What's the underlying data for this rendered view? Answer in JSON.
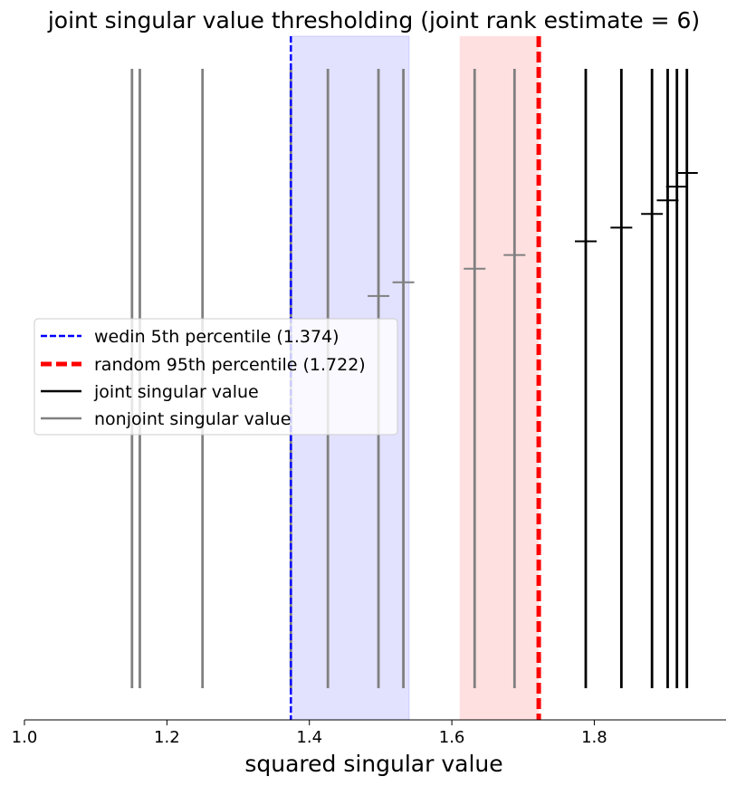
{
  "chart_data": {
    "type": "line",
    "title": "joint singular value thresholding (joint rank estimate = 6)",
    "xlabel": "squared singular value",
    "ylabel": "",
    "xlim": [
      1.0,
      1.985
    ],
    "xticks": [
      1.0,
      1.2,
      1.4,
      1.6,
      1.8
    ],
    "xtick_labels": [
      "1.0",
      "1.2",
      "1.4",
      "1.6",
      "1.8"
    ],
    "grid": false,
    "legend_position": "center-left",
    "colors": {
      "wedin_line": "#0000ff",
      "random_line": "#ff0000",
      "wedin_band": "#b3b3ff",
      "random_band": "#ffc2c2",
      "joint": "#000000",
      "nonjoint": "#808080"
    },
    "thresholds": {
      "wedin_5th_percentile": 1.374,
      "random_95th_percentile": 1.722,
      "wedin_band": [
        1.374,
        1.54
      ],
      "random_band": [
        1.611,
        1.722
      ]
    },
    "legend": [
      {
        "label": "wedin 5th percentile (1.374)",
        "style": "dashed",
        "color": "#0000ff"
      },
      {
        "label": "random 95th percentile (1.722)",
        "style": "thick-dashed",
        "color": "#ff0000"
      },
      {
        "label": "joint singular value",
        "style": "solid",
        "color": "#000000"
      },
      {
        "label": "nonjoint singular value",
        "style": "solid",
        "color": "#808080"
      }
    ],
    "series": [
      {
        "name": "joint singular value",
        "x": [
          1.788,
          1.838,
          1.881,
          1.903,
          1.916,
          1.93
        ],
        "marker_level": [
          0.7,
          0.72,
          0.74,
          0.76,
          0.78,
          0.8
        ]
      },
      {
        "name": "nonjoint singular value",
        "x": [
          1.151,
          1.162,
          1.25,
          1.374,
          1.426,
          1.497,
          1.532,
          1.632,
          1.688
        ],
        "marker_level": [
          null,
          null,
          null,
          null,
          null,
          0.62,
          0.64,
          0.66,
          0.68
        ]
      }
    ]
  }
}
